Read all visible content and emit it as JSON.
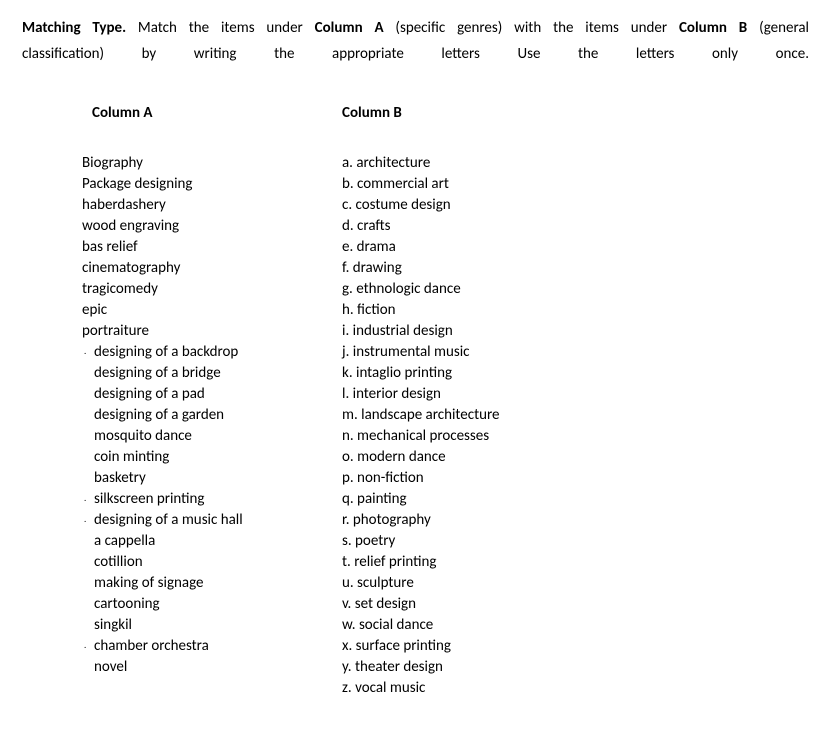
{
  "instructions": {
    "label_bold": "Matching Type.",
    "part1": " Match the items under ",
    "colA_bold": "Column A",
    "part2": " (specific genres) with the items under ",
    "colB_bold": "Column B",
    "part3": " (general",
    "line2_left": "classification) by writing the appropriate  letters",
    "line2_right": "Use the letters only once."
  },
  "headers": {
    "colA": "Column A",
    "colB": "Column B"
  },
  "columnA": [
    {
      "text": "Biography",
      "dot": false,
      "indent": false
    },
    {
      "text": "Package designing",
      "dot": false,
      "indent": false
    },
    {
      "text": "haberdashery",
      "dot": false,
      "indent": false
    },
    {
      "text": "wood engraving",
      "dot": false,
      "indent": false
    },
    {
      "text": "bas relief",
      "dot": false,
      "indent": false
    },
    {
      "text": "cinematography",
      "dot": false,
      "indent": false
    },
    {
      "text": "tragicomedy",
      "dot": false,
      "indent": false
    },
    {
      "text": "epic",
      "dot": false,
      "indent": false
    },
    {
      "text": "portraiture",
      "dot": false,
      "indent": false
    },
    {
      "text": "designing of a backdrop",
      "dot": true,
      "indent": true
    },
    {
      "text": "designing of a bridge",
      "dot": false,
      "indent": true
    },
    {
      "text": "designing of a pad",
      "dot": false,
      "indent": true
    },
    {
      "text": "designing of a garden",
      "dot": false,
      "indent": true
    },
    {
      "text": "mosquito dance",
      "dot": false,
      "indent": true
    },
    {
      "text": "coin minting",
      "dot": false,
      "indent": true
    },
    {
      "text": "basketry",
      "dot": false,
      "indent": true
    },
    {
      "text": "silkscreen printing",
      "dot": true,
      "indent": true
    },
    {
      "text": "designing of a music hall",
      "dot": true,
      "indent": true
    },
    {
      "text": "a cappella",
      "dot": false,
      "indent": true
    },
    {
      "text": "cotillion",
      "dot": false,
      "indent": true
    },
    {
      "text": "making of signage",
      "dot": false,
      "indent": true
    },
    {
      "text": "cartooning",
      "dot": false,
      "indent": true
    },
    {
      "text": "singkil",
      "dot": false,
      "indent": true
    },
    {
      "text": "chamber orchestra",
      "dot": true,
      "indent": true
    },
    {
      "text": "novel",
      "dot": false,
      "indent": true
    }
  ],
  "columnB": [
    "a. architecture",
    "b. commercial art",
    "c. costume design",
    "d. crafts",
    "e. drama",
    "f. drawing",
    "g. ethnologic dance",
    "h. fiction",
    "i. industrial design",
    "j. instrumental music",
    "k. intaglio printing",
    "l. interior design",
    "m. landscape architecture",
    "n. mechanical processes",
    "o. modern dance",
    "p. non-fiction",
    "q. painting",
    "r. photography",
    "s. poetry",
    "t. relief printing",
    "u. sculpture",
    "v. set design",
    "w. social dance",
    "x. surface printing",
    "y. theater design",
    "z. vocal music"
  ]
}
